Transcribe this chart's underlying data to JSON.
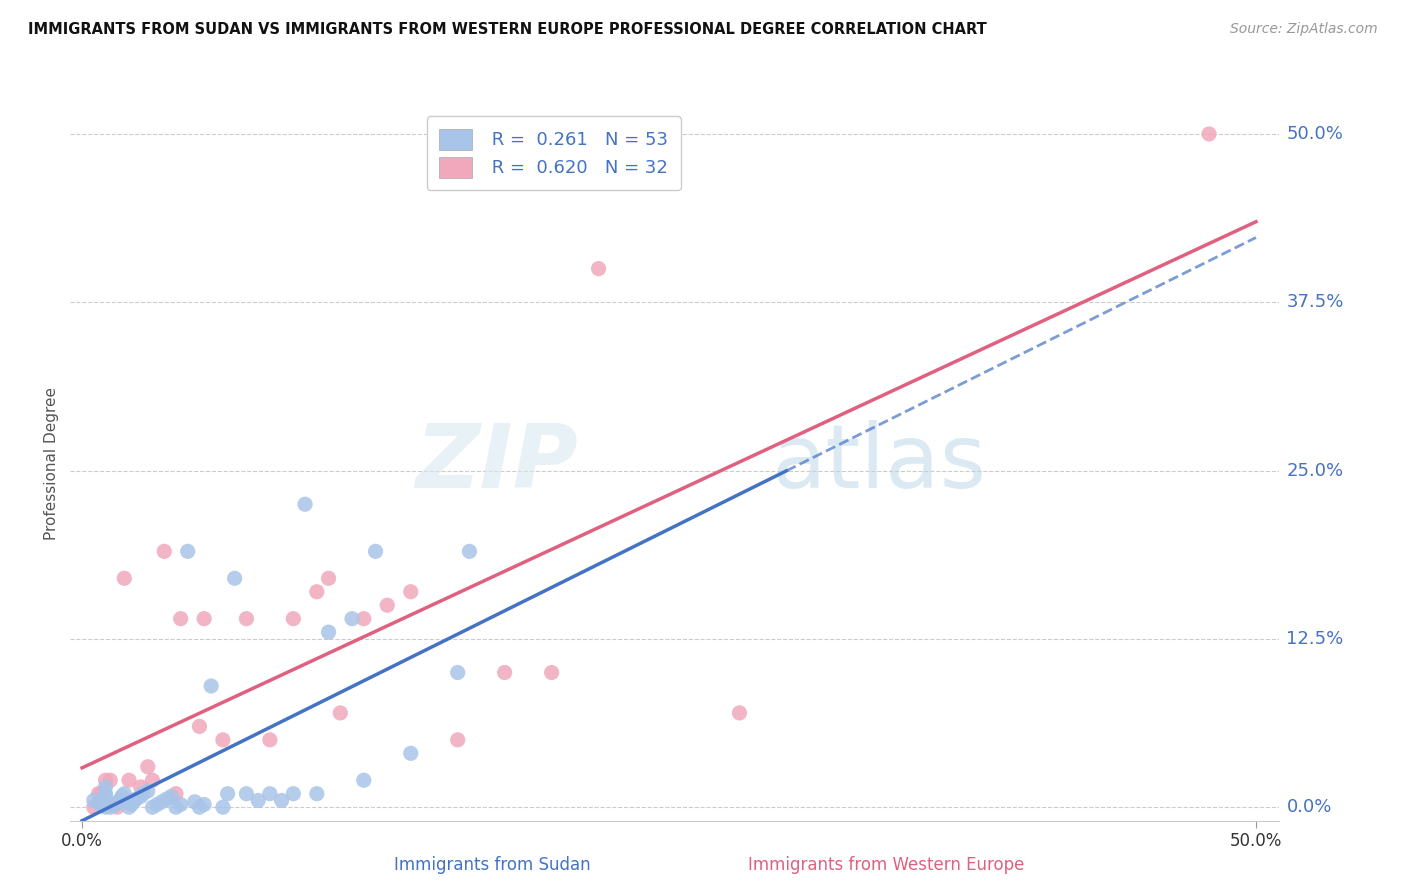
{
  "title": "IMMIGRANTS FROM SUDAN VS IMMIGRANTS FROM WESTERN EUROPE PROFESSIONAL DEGREE CORRELATION CHART",
  "source": "Source: ZipAtlas.com",
  "ylabel": "Professional Degree",
  "ytick_labels": [
    "0.0%",
    "12.5%",
    "25.0%",
    "37.5%",
    "50.0%"
  ],
  "ytick_values": [
    0.0,
    0.125,
    0.25,
    0.375,
    0.5
  ],
  "xtick_labels": [
    "0.0%",
    "50.0%"
  ],
  "xtick_values": [
    0.0,
    0.5
  ],
  "xlim": [
    -0.005,
    0.51
  ],
  "ylim": [
    -0.01,
    0.52
  ],
  "legend_r1": " R =  0.261",
  "legend_n1": "N = 53",
  "legend_r2": " R =  0.620",
  "legend_n2": "N = 32",
  "color_sudan_dot": "#a8c4e8",
  "color_western_dot": "#f0a8bc",
  "color_sudan_line": "#4472C4",
  "color_western_line": "#e06080",
  "color_tick_label": "#4472C4",
  "watermark_zip": "ZIP",
  "watermark_atlas": "atlas",
  "sudan_x": [
    0.005,
    0.007,
    0.008,
    0.009,
    0.01,
    0.01,
    0.01,
    0.01,
    0.01,
    0.01,
    0.012,
    0.013,
    0.014,
    0.015,
    0.016,
    0.017,
    0.018,
    0.02,
    0.021,
    0.022,
    0.023,
    0.025,
    0.026,
    0.028,
    0.03,
    0.032,
    0.034,
    0.036,
    0.038,
    0.04,
    0.042,
    0.045,
    0.048,
    0.05,
    0.052,
    0.055,
    0.06,
    0.062,
    0.065,
    0.07,
    0.075,
    0.08,
    0.085,
    0.09,
    0.095,
    0.1,
    0.105,
    0.115,
    0.12,
    0.125,
    0.14,
    0.16,
    0.165
  ],
  "sudan_y": [
    0.005,
    0.003,
    0.002,
    0.001,
    0.0,
    0.002,
    0.005,
    0.008,
    0.01,
    0.015,
    0.0,
    0.001,
    0.002,
    0.003,
    0.005,
    0.008,
    0.01,
    0.0,
    0.002,
    0.004,
    0.006,
    0.008,
    0.01,
    0.012,
    0.0,
    0.002,
    0.004,
    0.006,
    0.008,
    0.0,
    0.002,
    0.19,
    0.004,
    0.0,
    0.002,
    0.09,
    0.0,
    0.01,
    0.17,
    0.01,
    0.005,
    0.01,
    0.005,
    0.01,
    0.225,
    0.01,
    0.13,
    0.14,
    0.02,
    0.19,
    0.04,
    0.1,
    0.19
  ],
  "western_x": [
    0.005,
    0.007,
    0.008,
    0.01,
    0.012,
    0.015,
    0.018,
    0.02,
    0.025,
    0.028,
    0.03,
    0.035,
    0.04,
    0.042,
    0.05,
    0.052,
    0.06,
    0.07,
    0.08,
    0.09,
    0.1,
    0.105,
    0.11,
    0.12,
    0.13,
    0.14,
    0.16,
    0.18,
    0.2,
    0.22,
    0.28,
    0.48
  ],
  "western_y": [
    0.0,
    0.01,
    0.01,
    0.02,
    0.02,
    0.0,
    0.17,
    0.02,
    0.015,
    0.03,
    0.02,
    0.19,
    0.01,
    0.14,
    0.06,
    0.14,
    0.05,
    0.14,
    0.05,
    0.14,
    0.16,
    0.17,
    0.07,
    0.14,
    0.15,
    0.16,
    0.05,
    0.1,
    0.1,
    0.4,
    0.07,
    0.5
  ]
}
